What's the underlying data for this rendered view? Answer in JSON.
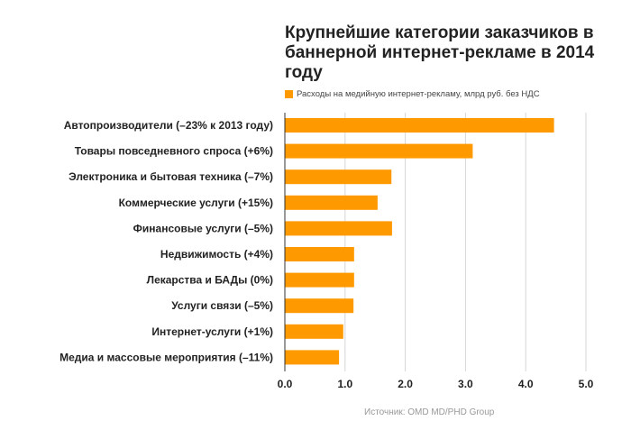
{
  "chart_data": {
    "type": "bar",
    "orientation": "horizontal",
    "title": "Крупнейшие категории заказчиков в баннерной интернет-рекламе в 2014 году",
    "legend": "Расходы на медийную интернет-рекламу, млрд руб. без НДС",
    "legend_position": "top-left",
    "categories": [
      "Автопроизводители (–23% к 2013 году)",
      "Товары повседневного спроса (+6%)",
      "Электроника и бытовая техника (–7%)",
      "Коммерческие услуги (+15%)",
      "Финансовые услуги (–5%)",
      "Недвижимость (+4%)",
      "Лекарства и БАДы (0%)",
      "Услуги связи (–5%)",
      "Интернет-услуги (+1%)",
      "Медиа и массовые мероприятия (–11%)"
    ],
    "series": [
      {
        "name": "Расходы на медийную интернет-рекламу, млрд руб. без НДС",
        "color": "#ff9900",
        "values": [
          4.47,
          3.12,
          1.77,
          1.54,
          1.78,
          1.15,
          1.15,
          1.14,
          0.97,
          0.9
        ]
      }
    ],
    "xlim": [
      0,
      5
    ],
    "xticks": [
      "0.0",
      "1.0",
      "2.0",
      "3.0",
      "4.0",
      "5.0"
    ],
    "xlabel": "",
    "ylabel": "",
    "grid": true,
    "source": "Источник: OMD MD/PHD Group"
  }
}
